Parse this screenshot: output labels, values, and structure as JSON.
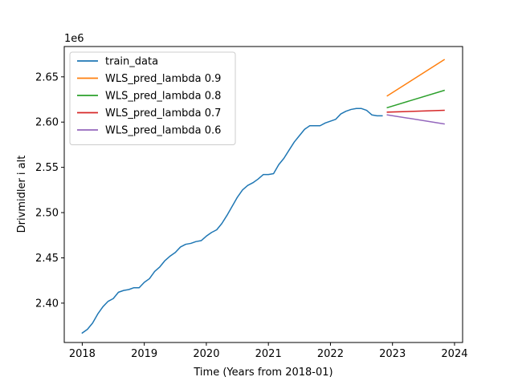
{
  "chart_data": {
    "type": "line",
    "title": "",
    "xlabel": "Time (Years from 2018-01)",
    "ylabel": "Drivmidler i alt",
    "y_offset_label": "1e6",
    "xlim": [
      2017.71,
      2024.13
    ],
    "ylim": [
      2356500,
      2683500
    ],
    "x_ticks": [
      2018,
      2019,
      2020,
      2021,
      2022,
      2023,
      2024
    ],
    "x_tick_labels": [
      "2018",
      "2019",
      "2020",
      "2021",
      "2022",
      "2023",
      "2024"
    ],
    "y_ticks": [
      2400000,
      2450000,
      2500000,
      2550000,
      2600000,
      2650000
    ],
    "y_tick_labels": [
      "2.40",
      "2.45",
      "2.50",
      "2.55",
      "2.60",
      "2.65"
    ],
    "legend_position": "top-left",
    "grid": false,
    "series": [
      {
        "name": "train_data",
        "color": "#1f77b4",
        "x": [
          2018.0,
          2018.083,
          2018.167,
          2018.25,
          2018.333,
          2018.417,
          2018.5,
          2018.583,
          2018.667,
          2018.75,
          2018.833,
          2018.917,
          2019.0,
          2019.083,
          2019.167,
          2019.25,
          2019.333,
          2019.417,
          2019.5,
          2019.583,
          2019.667,
          2019.75,
          2019.833,
          2019.917,
          2020.0,
          2020.083,
          2020.167,
          2020.25,
          2020.333,
          2020.417,
          2020.5,
          2020.583,
          2020.667,
          2020.75,
          2020.833,
          2020.917,
          2021.0,
          2021.083,
          2021.167,
          2021.25,
          2021.333,
          2021.417,
          2021.5,
          2021.583,
          2021.667,
          2021.75,
          2021.833,
          2021.917,
          2022.0,
          2022.083,
          2022.167,
          2022.25,
          2022.333,
          2022.417,
          2022.5,
          2022.583,
          2022.667,
          2022.75,
          2022.833
        ],
        "values": [
          2367000,
          2371000,
          2378000,
          2388000,
          2396000,
          2402000,
          2405000,
          2412000,
          2414000,
          2415000,
          2417000,
          2417000,
          2423000,
          2427000,
          2435000,
          2440000,
          2447000,
          2452000,
          2456000,
          2462000,
          2465000,
          2466000,
          2468000,
          2469000,
          2474000,
          2478000,
          2481000,
          2488000,
          2497000,
          2507000,
          2517000,
          2525000,
          2530000,
          2533000,
          2537000,
          2542000,
          2542000,
          2543000,
          2553000,
          2560000,
          2569000,
          2578000,
          2585000,
          2592000,
          2596000,
          2596000,
          2596000,
          2599000,
          2601000,
          2603000,
          2609000,
          2612000,
          2614000,
          2615000,
          2615000,
          2613000,
          2608000,
          2607000,
          2607000
        ]
      },
      {
        "name": "WLS_pred_lambda 0.9",
        "color": "#ff7f0e",
        "x": [
          2022.917,
          2023.833
        ],
        "values": [
          2629000,
          2669000
        ]
      },
      {
        "name": "WLS_pred_lambda 0.8",
        "color": "#2ca02c",
        "x": [
          2022.917,
          2023.833
        ],
        "values": [
          2616000,
          2635000
        ]
      },
      {
        "name": "WLS_pred_lambda 0.7",
        "color": "#d62728",
        "x": [
          2022.917,
          2023.833
        ],
        "values": [
          2611000,
          2613000
        ]
      },
      {
        "name": "WLS_pred_lambda 0.6",
        "color": "#9467bd",
        "x": [
          2022.917,
          2023.833
        ],
        "values": [
          2608000,
          2598000
        ]
      }
    ]
  }
}
